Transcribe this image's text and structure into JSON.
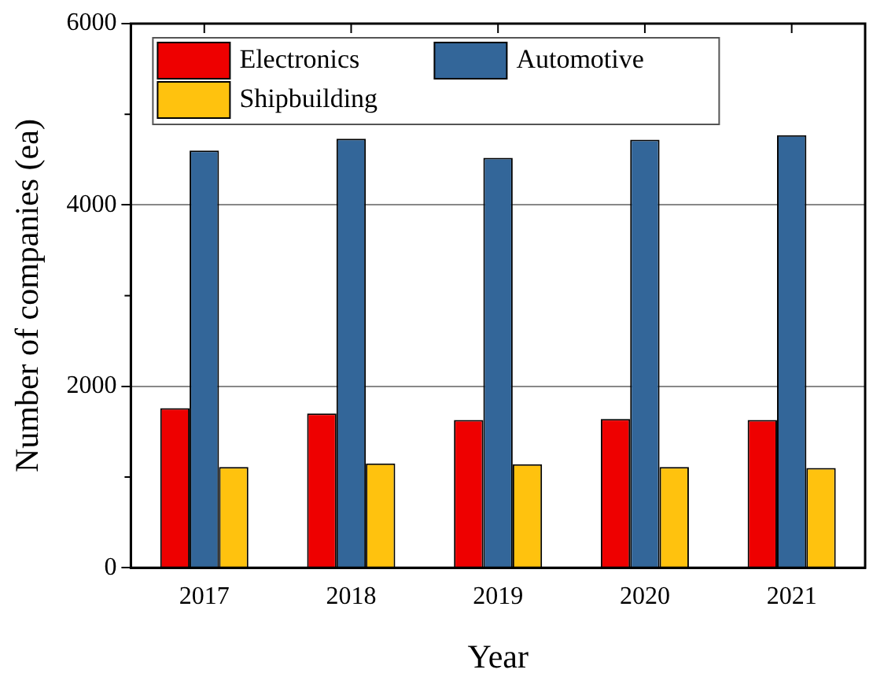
{
  "chart_data": {
    "type": "bar",
    "xlabel": "Year",
    "ylabel": "Number of companies (ea)",
    "categories": [
      "2017",
      "2018",
      "2019",
      "2020",
      "2021"
    ],
    "series": [
      {
        "name": "Electronics",
        "color": "#ee0000",
        "values": [
          1760,
          1700,
          1630,
          1640,
          1630
        ]
      },
      {
        "name": "Automotive",
        "color": "#336699",
        "values": [
          4600,
          4730,
          4520,
          4720,
          4770
        ]
      },
      {
        "name": "Shipbuilding",
        "color": "#ffc20e",
        "values": [
          1110,
          1150,
          1140,
          1110,
          1100
        ]
      }
    ],
    "ylim": [
      0,
      6000
    ],
    "yticks": [
      0,
      2000,
      4000,
      6000
    ],
    "grid": "y",
    "legend": "top left"
  }
}
